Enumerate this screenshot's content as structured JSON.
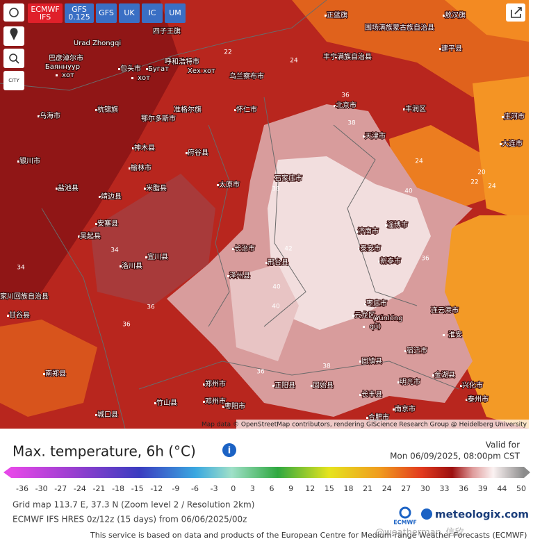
{
  "toolbar": {
    "models": [
      [
        "ECMWF",
        "IFS"
      ],
      [
        "GFS",
        "0.125"
      ],
      [
        "GFS"
      ],
      [
        "UK"
      ],
      [
        "IC"
      ],
      [
        "UM"
      ]
    ],
    "city_button": "CITY"
  },
  "map": {
    "places": [
      "Urad Zhongqi",
      "巴彦淖尔市",
      "Баяннуур",
      "хот",
      "包头市",
      "Бугат",
      "хот",
      "呼和浩特市",
      "Хех хот",
      "乌兰察布市",
      "四子王旗",
      "正蓝旗",
      "围场满族蒙古族自治县",
      "敖汉旗",
      "丰宁满族自治县",
      "北京市",
      "天津市",
      "丰润区",
      "建平县",
      "大连市",
      "庄河市",
      "怀仁市",
      "乌海市",
      "杭锦旗",
      "鄂尔多斯市",
      "准格尔旗",
      "神木县",
      "府谷县",
      "榆林市",
      "银川市",
      "盐池县",
      "靖边县",
      "米脂县",
      "太原市",
      "石家庄市",
      "济南市",
      "淄博市",
      "泰安市",
      "新泰市",
      "邢台县",
      "长治市",
      "泽州县",
      "安塞县",
      "吴起县",
      "洛川县",
      "宜川县",
      "枣庄市",
      "云龙区",
      "(Yúnlóng",
      "qū)",
      "连云港市",
      "淮安",
      "宿迁市",
      "固镇县",
      "长丰县",
      "明光市",
      "金湖县",
      "兴化市",
      "泰州市",
      "南京市",
      "合肥市",
      "固始县",
      "正阳县",
      "南郑县",
      "城口县",
      "竹山县",
      "邓州市",
      "枣阳市",
      "张家川回族自治县",
      "甘谷县",
      "郑州市"
    ],
    "contour_labels": [
      22,
      24,
      36,
      38,
      38,
      40,
      42,
      40,
      40,
      36,
      36,
      38,
      36,
      34,
      34,
      24,
      24,
      20,
      22,
      36
    ],
    "attribution": "Map data © OpenStreetMap contributors, rendering GIScience Research Group @ Heidelberg University"
  },
  "legend": {
    "title": "Max. temperature, 6h (°C)",
    "valid_label": "Valid for",
    "valid_time": "Mon 06/09/2025, 08:00pm CST",
    "ticks": [
      -36,
      -30,
      -27,
      -24,
      -21,
      -18,
      -15,
      -12,
      -9,
      -6,
      -3,
      0,
      3,
      6,
      9,
      12,
      15,
      18,
      21,
      24,
      27,
      30,
      33,
      36,
      39,
      44,
      50
    ]
  },
  "footer": {
    "grid_info": "Grid map 113.7 E, 37.3 N (Zoom level 2 / Resolution 2km)",
    "model_info": "ECMWF IFS HRES 0z/12z (15 days) from 06/06/2025/00z",
    "disclaimer": "This service is based on data and products of the European Centre for Medium-range Weather Forecasts (ECMWF)",
    "ecmwf": "ECMWF",
    "brand": "meteologix.com",
    "watermark": "@weatherman_信欣"
  }
}
